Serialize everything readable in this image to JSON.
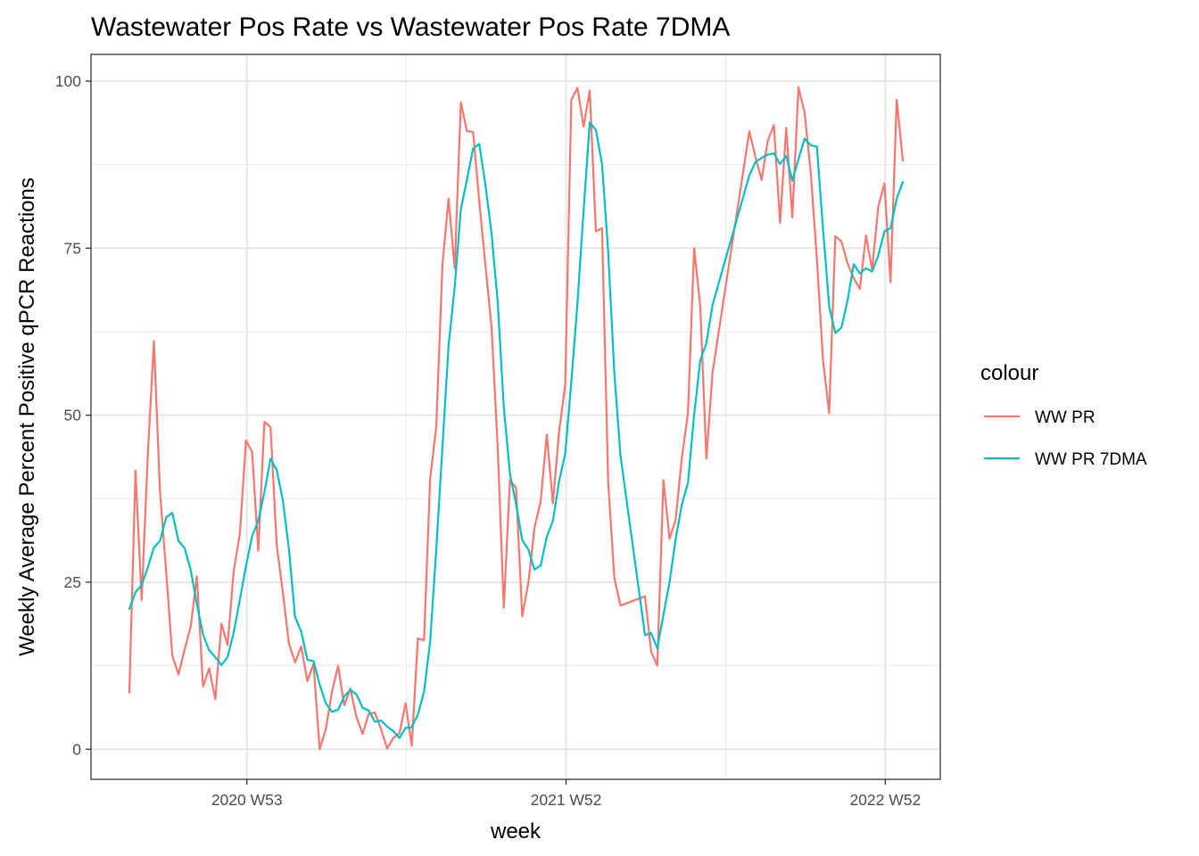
{
  "chart_data": {
    "type": "line",
    "title": "Wastewater Pos Rate vs Wastewater Pos Rate 7DMA",
    "xlabel": "week",
    "ylabel": "Weekly Average Percent Positive qPCR Reactions",
    "x_tick_labels": [
      "2020 W53",
      "2021 W52",
      "2022 W52"
    ],
    "y_ticks": [
      0,
      25,
      50,
      75,
      100
    ],
    "ylim": [
      -4.5,
      104
    ],
    "grid": true,
    "legend": {
      "title": "colour",
      "position": "right"
    },
    "series": [
      {
        "name": "WW PR",
        "color": "#F8766D",
        "points": [
          [
            "2020-08-16",
            8.5
          ],
          [
            "2020-08-23",
            41.7
          ],
          [
            "2020-08-30",
            22.3
          ],
          [
            "2020-09-06",
            44
          ],
          [
            "2020-09-13",
            61.1
          ],
          [
            "2020-09-20",
            38.4
          ],
          [
            "2020-09-27",
            26.5
          ],
          [
            "2020-10-04",
            14
          ],
          [
            "2020-10-11",
            11.2
          ],
          [
            "2020-10-18",
            14.9
          ],
          [
            "2020-10-25",
            18.4
          ],
          [
            "2020-11-01",
            25.9
          ],
          [
            "2020-11-08",
            9.4
          ],
          [
            "2020-11-15",
            12.1
          ],
          [
            "2020-11-22",
            7.5
          ],
          [
            "2020-11-29",
            18.8
          ],
          [
            "2020-12-06",
            15.6
          ],
          [
            "2020-12-13",
            26.7
          ],
          [
            "2020-12-20",
            32.3
          ],
          [
            "2020-12-27",
            46.2
          ],
          [
            "2021-01-03",
            44.5
          ],
          [
            "2021-01-10",
            29.7
          ],
          [
            "2021-01-17",
            49
          ],
          [
            "2021-01-24",
            48.2
          ],
          [
            "2021-01-31",
            30.6
          ],
          [
            "2021-02-07",
            23.5
          ],
          [
            "2021-02-14",
            15.8
          ],
          [
            "2021-02-21",
            13
          ],
          [
            "2021-02-28",
            15.4
          ],
          [
            "2021-03-07",
            10.2
          ],
          [
            "2021-03-14",
            12.8
          ],
          [
            "2021-03-21",
            0
          ],
          [
            "2021-03-28",
            3
          ],
          [
            "2021-04-04",
            8.6
          ],
          [
            "2021-04-11",
            12.5
          ],
          [
            "2021-04-18",
            6.6
          ],
          [
            "2021-04-25",
            9.1
          ],
          [
            "2021-05-02",
            4.8
          ],
          [
            "2021-05-09",
            2.3
          ],
          [
            "2021-05-16",
            5.3
          ],
          [
            "2021-05-23",
            5.5
          ],
          [
            "2021-05-30",
            3
          ],
          [
            "2021-06-06",
            0.1
          ],
          [
            "2021-06-13",
            1.7
          ],
          [
            "2021-06-20",
            2.4
          ],
          [
            "2021-06-27",
            6.9
          ],
          [
            "2021-07-04",
            0.5
          ],
          [
            "2021-07-11",
            16.6
          ],
          [
            "2021-07-18",
            16.3
          ],
          [
            "2021-07-25",
            40.5
          ],
          [
            "2021-08-01",
            48.3
          ],
          [
            "2021-08-08",
            72.5
          ],
          [
            "2021-08-15",
            82.4
          ],
          [
            "2021-08-22",
            72
          ],
          [
            "2021-08-29",
            96.8
          ],
          [
            "2021-09-05",
            92.5
          ],
          [
            "2021-09-12",
            92.4
          ],
          [
            "2021-09-19",
            82
          ],
          [
            "2021-09-26",
            72.5
          ],
          [
            "2021-10-03",
            63.2
          ],
          [
            "2021-10-10",
            45.3
          ],
          [
            "2021-10-17",
            21.2
          ],
          [
            "2021-10-24",
            40.3
          ],
          [
            "2021-10-31",
            39.1
          ],
          [
            "2021-11-07",
            19.9
          ],
          [
            "2021-11-14",
            24.9
          ],
          [
            "2021-11-21",
            33.2
          ],
          [
            "2021-11-28",
            37.1
          ],
          [
            "2021-12-05",
            47.1
          ],
          [
            "2021-12-12",
            36.8
          ],
          [
            "2021-12-19",
            47.5
          ],
          [
            "2021-12-26",
            54.5
          ],
          [
            "2022-01-02",
            97.2
          ],
          [
            "2022-01-09",
            99
          ],
          [
            "2022-01-16",
            93.2
          ],
          [
            "2022-01-23",
            98.6
          ],
          [
            "2022-01-30",
            77.5
          ],
          [
            "2022-02-06",
            78
          ],
          [
            "2022-02-13",
            40
          ],
          [
            "2022-02-20",
            25.7
          ],
          [
            "2022-02-27",
            21.5
          ],
          [
            "2022-03-27",
            22.9
          ],
          [
            "2022-04-03",
            14.6
          ],
          [
            "2022-04-10",
            12.5
          ],
          [
            "2022-04-17",
            40.3
          ],
          [
            "2022-04-24",
            31.5
          ],
          [
            "2022-05-01",
            34.4
          ],
          [
            "2022-05-08",
            43.6
          ],
          [
            "2022-05-15",
            50.3
          ],
          [
            "2022-05-22",
            75
          ],
          [
            "2022-05-29",
            66.3
          ],
          [
            "2022-06-05",
            43.5
          ],
          [
            "2022-06-12",
            56.4
          ],
          [
            "2022-07-24",
            92.5
          ],
          [
            "2022-07-31",
            88.6
          ],
          [
            "2022-08-07",
            85.2
          ],
          [
            "2022-08-14",
            91.1
          ],
          [
            "2022-08-21",
            93.4
          ],
          [
            "2022-08-28",
            78.8
          ],
          [
            "2022-09-04",
            93
          ],
          [
            "2022-09-11",
            79.6
          ],
          [
            "2022-09-18",
            99.1
          ],
          [
            "2022-09-25",
            95.3
          ],
          [
            "2022-10-02",
            86.3
          ],
          [
            "2022-10-09",
            73.4
          ],
          [
            "2022-10-16",
            58.2
          ],
          [
            "2022-10-23",
            50.3
          ],
          [
            "2022-10-30",
            76.8
          ],
          [
            "2022-11-06",
            76
          ],
          [
            "2022-11-13",
            72.7
          ],
          [
            "2022-11-20",
            70.5
          ],
          [
            "2022-11-27",
            68.9
          ],
          [
            "2022-12-04",
            76.9
          ],
          [
            "2022-12-11",
            71.8
          ],
          [
            "2022-12-18",
            81.2
          ],
          [
            "2022-12-25",
            84.7
          ],
          [
            "2023-01-01",
            69.9
          ],
          [
            "2023-01-08",
            97.2
          ],
          [
            "2023-01-15",
            88.1
          ]
        ]
      },
      {
        "name": "WW PR 7DMA",
        "color": "#00BFC4",
        "points": [
          [
            "2020-08-16",
            21
          ],
          [
            "2020-08-23",
            23.5
          ],
          [
            "2020-08-30",
            24.6
          ],
          [
            "2020-09-06",
            27.2
          ],
          [
            "2020-09-13",
            30.2
          ],
          [
            "2020-09-20",
            31.2
          ],
          [
            "2020-09-27",
            34.7
          ],
          [
            "2020-10-04",
            35.4
          ],
          [
            "2020-10-11",
            31.2
          ],
          [
            "2020-10-18",
            30.1
          ],
          [
            "2020-10-25",
            26.8
          ],
          [
            "2020-11-01",
            21.7
          ],
          [
            "2020-11-08",
            17.2
          ],
          [
            "2020-11-15",
            14.8
          ],
          [
            "2020-11-22",
            13.8
          ],
          [
            "2020-11-29",
            12.6
          ],
          [
            "2020-12-06",
            13.8
          ],
          [
            "2020-12-13",
            17.5
          ],
          [
            "2020-12-20",
            22.4
          ],
          [
            "2020-12-27",
            27.4
          ],
          [
            "2021-01-03",
            31.9
          ],
          [
            "2021-01-10",
            34.2
          ],
          [
            "2021-01-17",
            38.5
          ],
          [
            "2021-01-24",
            43.5
          ],
          [
            "2021-01-31",
            41.8
          ],
          [
            "2021-02-07",
            37.3
          ],
          [
            "2021-02-14",
            29.9
          ],
          [
            "2021-02-21",
            19.8
          ],
          [
            "2021-02-28",
            17.6
          ],
          [
            "2021-03-07",
            13.4
          ],
          [
            "2021-03-14",
            13.2
          ],
          [
            "2021-03-21",
            9.7
          ],
          [
            "2021-03-28",
            6.9
          ],
          [
            "2021-04-04",
            5.6
          ],
          [
            "2021-04-11",
            5.9
          ],
          [
            "2021-04-18",
            7.9
          ],
          [
            "2021-04-25",
            8.9
          ],
          [
            "2021-05-02",
            8.2
          ],
          [
            "2021-05-09",
            6.2
          ],
          [
            "2021-05-16",
            5.8
          ],
          [
            "2021-05-23",
            4.1
          ],
          [
            "2021-05-30",
            4.3
          ],
          [
            "2021-06-06",
            3.4
          ],
          [
            "2021-06-13",
            2.7
          ],
          [
            "2021-06-20",
            1.7
          ],
          [
            "2021-06-27",
            3.2
          ],
          [
            "2021-07-04",
            3.3
          ],
          [
            "2021-07-11",
            5.2
          ],
          [
            "2021-07-18",
            8.6
          ],
          [
            "2021-07-25",
            16.1
          ],
          [
            "2021-08-01",
            30
          ],
          [
            "2021-08-08",
            45.2
          ],
          [
            "2021-08-15",
            60.4
          ],
          [
            "2021-08-22",
            69.2
          ],
          [
            "2021-08-29",
            80.8
          ],
          [
            "2021-09-05",
            85.3
          ],
          [
            "2021-09-12",
            89.9
          ],
          [
            "2021-09-19",
            90.6
          ],
          [
            "2021-09-26",
            84.5
          ],
          [
            "2021-10-03",
            77.2
          ],
          [
            "2021-10-10",
            67
          ],
          [
            "2021-10-17",
            51.2
          ],
          [
            "2021-10-24",
            41.2
          ],
          [
            "2021-10-31",
            36.7
          ],
          [
            "2021-11-07",
            31.3
          ],
          [
            "2021-11-14",
            29.9
          ],
          [
            "2021-11-21",
            26.9
          ],
          [
            "2021-11-28",
            27.5
          ],
          [
            "2021-12-05",
            31.8
          ],
          [
            "2021-12-12",
            34.2
          ],
          [
            "2021-12-19",
            40.1
          ],
          [
            "2021-12-26",
            44.2
          ],
          [
            "2022-01-02",
            55
          ],
          [
            "2022-01-09",
            66.8
          ],
          [
            "2022-01-16",
            80.6
          ],
          [
            "2022-01-23",
            93.8
          ],
          [
            "2022-01-30",
            92.7
          ],
          [
            "2022-02-06",
            87.6
          ],
          [
            "2022-02-13",
            74.5
          ],
          [
            "2022-02-20",
            56.4
          ],
          [
            "2022-02-27",
            44
          ],
          [
            "2022-03-27",
            17.1
          ],
          [
            "2022-04-03",
            17.4
          ],
          [
            "2022-04-10",
            15.1
          ],
          [
            "2022-04-17",
            20.1
          ],
          [
            "2022-04-24",
            25
          ],
          [
            "2022-05-01",
            31.5
          ],
          [
            "2022-05-08",
            36.6
          ],
          [
            "2022-05-15",
            39.9
          ],
          [
            "2022-05-22",
            50
          ],
          [
            "2022-05-29",
            58.2
          ],
          [
            "2022-06-05",
            60.8
          ],
          [
            "2022-06-12",
            66.5
          ],
          [
            "2022-07-24",
            85.9
          ],
          [
            "2022-07-31",
            87.9
          ],
          [
            "2022-08-07",
            88.5
          ],
          [
            "2022-08-14",
            89
          ],
          [
            "2022-08-21",
            89.2
          ],
          [
            "2022-08-28",
            87.6
          ],
          [
            "2022-09-04",
            88.8
          ],
          [
            "2022-09-11",
            85.1
          ],
          [
            "2022-09-18",
            88.3
          ],
          [
            "2022-09-25",
            91.4
          ],
          [
            "2022-10-02",
            90.4
          ],
          [
            "2022-10-09",
            90.2
          ],
          [
            "2022-10-16",
            77.9
          ],
          [
            "2022-10-23",
            66.3
          ],
          [
            "2022-10-30",
            62.3
          ],
          [
            "2022-11-06",
            63.1
          ],
          [
            "2022-11-13",
            67.2
          ],
          [
            "2022-11-20",
            72.6
          ],
          [
            "2022-11-27",
            71.2
          ],
          [
            "2022-12-04",
            72
          ],
          [
            "2022-12-11",
            71.5
          ],
          [
            "2022-12-18",
            73.9
          ],
          [
            "2022-12-25",
            77.5
          ],
          [
            "2023-01-01",
            78
          ],
          [
            "2023-01-08",
            82.4
          ],
          [
            "2023-01-15",
            84.9
          ]
        ]
      }
    ]
  }
}
